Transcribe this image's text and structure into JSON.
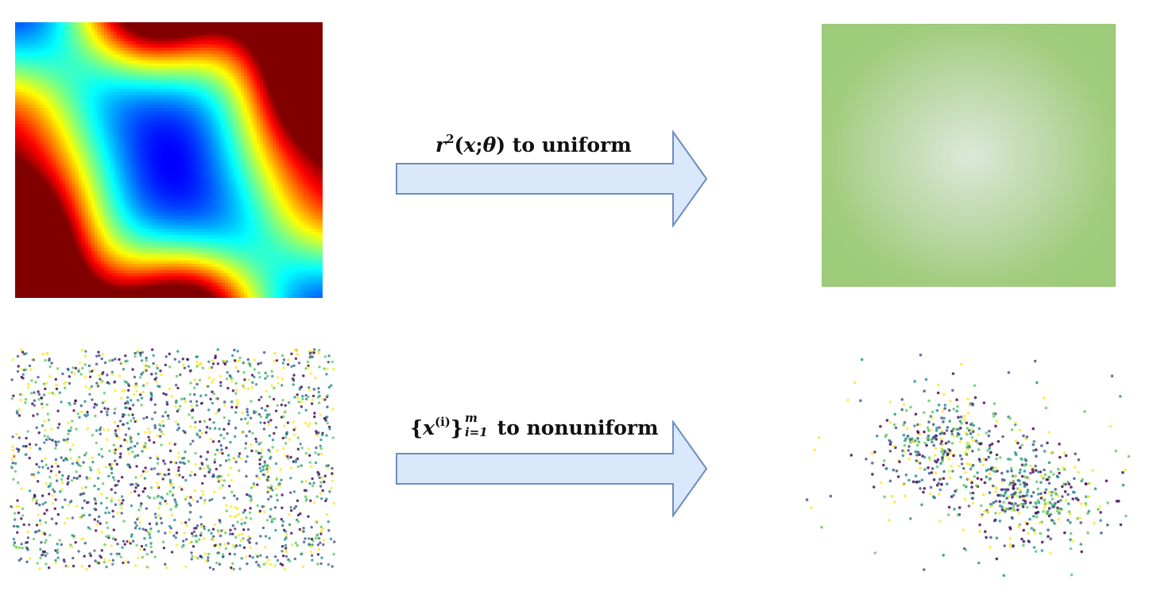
{
  "diagram": {
    "top_arrow": {
      "parts": {
        "r": "r",
        "sq": "2",
        "open": "(",
        "x": "x",
        "semi": ";",
        "theta": "θ",
        "close": ")",
        "text": " to uniform"
      }
    },
    "bottom_arrow": {
      "parts": {
        "lbrace": "{",
        "x": "x",
        "sup": "(i)",
        "rbrace": "}",
        "upper": "m",
        "lower": "i=1",
        "text": " to nonuniform"
      }
    },
    "colors": {
      "arrow_fill": "#dae8fc",
      "arrow_stroke": "#6c8ebf",
      "uniform_fill": "#a2cd7f",
      "uniform_center": "#dce8d8",
      "point_palette": [
        "#440154",
        "#3b528b",
        "#21918c",
        "#5ec962",
        "#fde725"
      ]
    },
    "icons": [
      "heatmap-image",
      "uniform-density-image",
      "uniform-scatter-image",
      "nonuniform-scatter-image",
      "right-arrow-icon"
    ]
  }
}
